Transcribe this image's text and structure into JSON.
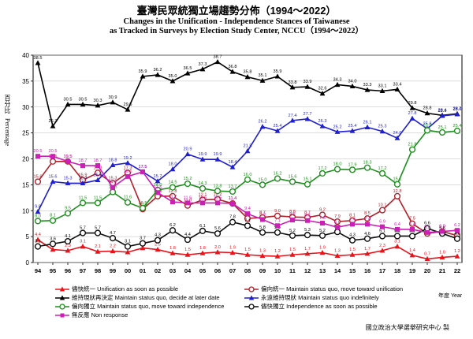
{
  "page": {
    "title_zh": "臺灣民眾統獨立場趨勢分佈（1994～2022）",
    "title_en_1": "Changes in the Unification - Independence Stances of Taiwanese",
    "title_en_2": "as Tracked in Surveys by Election Study Center, NCCU（1994～2022）",
    "ylabel_zh": "百分比",
    "ylabel_en": "Percentage",
    "xunit": "年度 Year",
    "source": "國立政治大學選舉研究中心 製"
  },
  "chart_data": {
    "type": "line",
    "ylim": [
      0,
      40
    ],
    "yticks": [
      0,
      5,
      10,
      15,
      20,
      25,
      30,
      35,
      40
    ],
    "categories": [
      "94",
      "95",
      "96",
      "97",
      "98",
      "99",
      "00",
      "01",
      "02",
      "03",
      "04",
      "05",
      "06",
      "07",
      "08",
      "09",
      "10",
      "11",
      "12",
      "13",
      "14",
      "15",
      "16",
      "17",
      "18",
      "19",
      "20",
      "21",
      "22"
    ],
    "grid": "horizontal",
    "series": [
      {
        "key": "s1",
        "name": "儘快統一 Unification as soon as possible",
        "color": "#e8141b",
        "marker": "tri",
        "values": [
          4.4,
          2.5,
          2.3,
          3.1,
          2.1,
          2.2,
          2.0,
          2.8,
          2.5,
          1.8,
          1.5,
          1.8,
          2.0,
          1.9,
          1.5,
          1.3,
          1.2,
          1.5,
          1.7,
          1.9,
          1.3,
          1.5,
          1.7,
          2.3,
          3.1,
          1.4,
          0.7,
          1.0,
          1.2
        ],
        "legend_row": 0,
        "legend_col": 0
      },
      {
        "key": "s2",
        "name": "偏向統一 Maintain status quo, move toward unification",
        "color": "#b0202a",
        "marker": "circle",
        "values": [
          15.6,
          19.5,
          19.5,
          15.9,
          17.3,
          15.3,
          17.3,
          10.3,
          12.8,
          12.8,
          11.0,
          12.1,
          12.2,
          11.4,
          8.5,
          8.7,
          9.0,
          8.8,
          8.7,
          9.2,
          7.9,
          8.1,
          8.5,
          10.1,
          12.8,
          7.5,
          5.6,
          6.0,
          5.2
        ],
        "legend_row": 0,
        "legend_col": 1
      },
      {
        "key": "s3",
        "name": "維持現狀再決定 Maintain status quo, decide at later date",
        "color": "#000000",
        "marker": "tri",
        "values": [
          38.5,
          26.3,
          30.5,
          30.5,
          30.3,
          30.9,
          29.5,
          35.9,
          36.2,
          35.0,
          36.5,
          37.3,
          38.7,
          36.8,
          35.8,
          35.1,
          35.9,
          33.8,
          33.9,
          32.6,
          34.3,
          34.0,
          33.3,
          33.1,
          33.4,
          29.8,
          28.8,
          28.4,
          28.7
        ],
        "legend_row": 1,
        "legend_col": 0
      },
      {
        "key": "s4",
        "name": "永遠維持現狀 Maintain status quo indefinitely",
        "color": "#1f1fcf",
        "marker": "tri",
        "values": [
          9.8,
          15.6,
          15.3,
          15.3,
          15.9,
          18.8,
          19.2,
          17.5,
          15.7,
          18.0,
          20.9,
          19.9,
          19.9,
          18.4,
          21.5,
          26.2,
          25.4,
          27.4,
          27.7,
          26.3,
          25.2,
          25.4,
          26.1,
          25.3,
          24.0,
          27.8,
          25.8,
          28.3,
          28.6
        ],
        "legend_row": 1,
        "legend_col": 1
      },
      {
        "key": "s5",
        "name": "偏向獨立 Maintain status quo, move toward independence",
        "color": "#1e8f1e",
        "marker": "circle",
        "values": [
          8.0,
          8.1,
          9.5,
          11.5,
          11.5,
          13.6,
          11.6,
          10.5,
          14.0,
          14.5,
          15.2,
          14.3,
          13.8,
          13.7,
          16.0,
          15.0,
          16.2,
          15.6,
          15.1,
          17.2,
          18.0,
          17.9,
          18.3,
          17.2,
          15.1,
          21.8,
          25.5,
          25.1,
          25.4
        ],
        "legend_row": 2,
        "legend_col": 0
      },
      {
        "key": "s6",
        "name": "儘快獨立 Independence as soon as possible",
        "color": "#0d0d0d",
        "marker": "circle",
        "values": [
          3.1,
          3.6,
          4.1,
          5.7,
          5.7,
          4.7,
          3.1,
          3.7,
          4.3,
          6.2,
          4.4,
          6.1,
          5.6,
          7.8,
          7.1,
          5.8,
          5.8,
          5.2,
          5.3,
          5.2,
          5.9,
          4.3,
          4.6,
          5.1,
          5.1,
          5.1,
          6.6,
          5.6,
          4.6
        ],
        "legend_row": 2,
        "legend_col": 1
      },
      {
        "key": "s7",
        "name": "無反應 Non response",
        "color": "#cc1fb6",
        "marker": "square",
        "values": [
          20.5,
          20.5,
          19.5,
          18.7,
          18.7,
          14.5,
          16.6,
          17.5,
          13.5,
          11.7,
          11.5,
          11.5,
          11.5,
          11.4,
          9.4,
          8.3,
          7.1,
          8.2,
          8.1,
          7.6,
          6.8,
          7.4,
          7.4,
          6.9,
          6.4,
          6.4,
          5.8,
          6.0,
          6.2
        ],
        "legend_row": 3,
        "legend_col": 0
      }
    ]
  }
}
